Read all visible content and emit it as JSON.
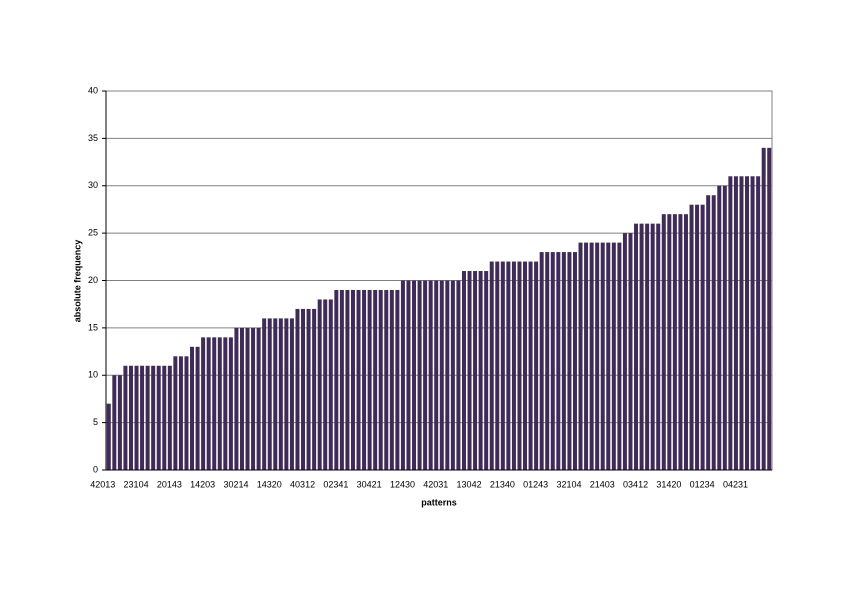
{
  "chart_data": {
    "type": "bar",
    "x_label": "patterns",
    "y_label": "absolute frequency",
    "categories": [
      "42013",
      null,
      null,
      null,
      null,
      null,
      "23104",
      null,
      null,
      null,
      null,
      null,
      "20143",
      null,
      null,
      null,
      null,
      null,
      "14203",
      null,
      null,
      null,
      null,
      null,
      "30214",
      null,
      null,
      null,
      null,
      null,
      "14320",
      null,
      null,
      null,
      null,
      null,
      "40312",
      null,
      null,
      null,
      null,
      null,
      "02341",
      null,
      null,
      null,
      null,
      null,
      "30421",
      null,
      null,
      null,
      null,
      null,
      "12430",
      null,
      null,
      null,
      null,
      null,
      "42031",
      null,
      null,
      null,
      null,
      null,
      "13042",
      null,
      null,
      null,
      null,
      null,
      "21340",
      null,
      null,
      null,
      null,
      null,
      "01243",
      null,
      null,
      null,
      null,
      null,
      "32104",
      null,
      null,
      null,
      null,
      null,
      "21403",
      null,
      null,
      null,
      null,
      null,
      "03412",
      null,
      null,
      null,
      null,
      null,
      "31420",
      null,
      null,
      null,
      null,
      null,
      "01234",
      null,
      null,
      null,
      null,
      null,
      "04231",
      null,
      null,
      null,
      null,
      null
    ],
    "values": [
      7,
      10,
      10,
      11,
      11,
      11,
      11,
      11,
      11,
      11,
      11,
      11,
      12,
      12,
      12,
      13,
      13,
      14,
      14,
      14,
      14,
      14,
      14,
      15,
      15,
      15,
      15,
      15,
      16,
      16,
      16,
      16,
      16,
      16,
      17,
      17,
      17,
      17,
      18,
      18,
      18,
      19,
      19,
      19,
      19,
      19,
      19,
      19,
      19,
      19,
      19,
      19,
      19,
      20,
      20,
      20,
      20,
      20,
      20,
      20,
      20,
      20,
      20,
      20,
      21,
      21,
      21,
      21,
      21,
      22,
      22,
      22,
      22,
      22,
      22,
      22,
      22,
      22,
      23,
      23,
      23,
      23,
      23,
      23,
      23,
      24,
      24,
      24,
      24,
      24,
      24,
      24,
      24,
      25,
      25,
      26,
      26,
      26,
      26,
      26,
      27,
      27,
      27,
      27,
      27,
      28,
      28,
      28,
      29,
      29,
      30,
      30,
      31,
      31,
      31,
      31,
      31,
      31,
      34,
      34
    ],
    "color": "#3f2a58",
    "ylim": [
      0,
      40
    ],
    "yticks": [
      0,
      5,
      10,
      15,
      20,
      25,
      30,
      35,
      40
    ],
    "grid": true
  }
}
